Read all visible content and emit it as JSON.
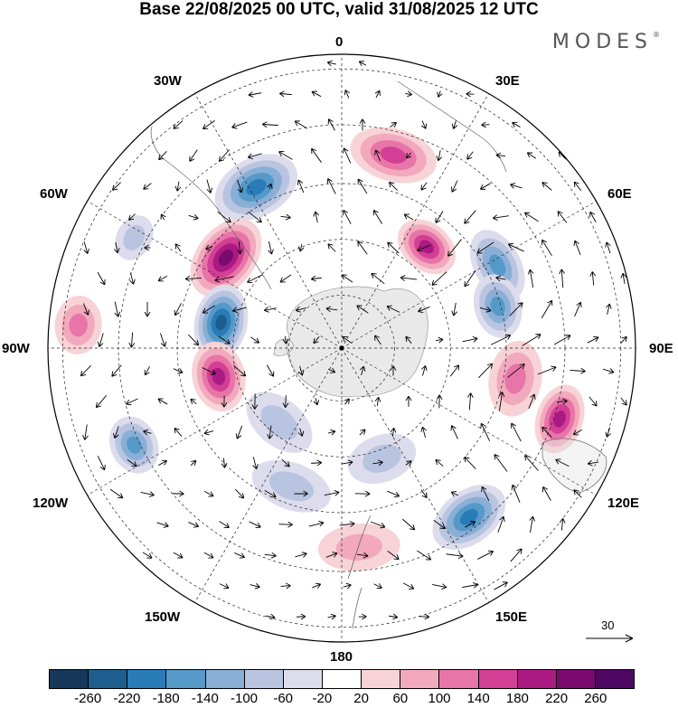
{
  "title": "Base 22/08/2025 00 UTC, valid 31/08/2025 12 UTC",
  "brand": "MODES",
  "brand_mark": "®",
  "longitude_labels": {
    "lon_0": "0",
    "lon_30e": "30E",
    "lon_60e": "60E",
    "lon_90e": "90E",
    "lon_120e": "120E",
    "lon_150e": "150E",
    "lon_180": "180",
    "lon_150w": "150W",
    "lon_120w": "120W",
    "lon_90w": "90W",
    "lon_60w": "60W",
    "lon_30w": "30W"
  },
  "reference_vector": {
    "label": "30",
    "value": 30
  },
  "colorbar": {
    "ticks": [
      "-260",
      "-220",
      "-180",
      "-140",
      "-100",
      "-60",
      "-20",
      "20",
      "60",
      "100",
      "140",
      "180",
      "220",
      "260"
    ],
    "colors": [
      "#17385a",
      "#1d5e8e",
      "#2a7cb8",
      "#5599c9",
      "#8aafd6",
      "#b9c4e0",
      "#dcdcec",
      "#ffffff",
      "#f7d3d8",
      "#f2a9bd",
      "#e875a8",
      "#d33f95",
      "#ab1982",
      "#7a0a6e",
      "#4e0863"
    ]
  },
  "anomalies": [
    {
      "lon": -28,
      "colat": 0.62,
      "a": 0.15,
      "b": 0.1,
      "value": -180
    },
    {
      "lon": -52,
      "colat": 0.5,
      "a": 0.15,
      "b": 0.1,
      "value": 220
    },
    {
      "lon": -78,
      "colat": 0.42,
      "a": 0.13,
      "b": 0.09,
      "value": -240
    },
    {
      "lon": -103,
      "colat": 0.43,
      "a": 0.12,
      "b": 0.09,
      "value": 180
    },
    {
      "lon": -115,
      "colat": 0.78,
      "a": 0.1,
      "b": 0.08,
      "value": -140
    },
    {
      "lon": -85,
      "colat": 0.9,
      "a": 0.1,
      "b": 0.08,
      "value": 100
    },
    {
      "lon": -62,
      "colat": 0.8,
      "a": 0.08,
      "b": 0.06,
      "value": -60
    },
    {
      "lon": 15,
      "colat": 0.68,
      "a": 0.15,
      "b": 0.09,
      "value": 140
    },
    {
      "lon": 40,
      "colat": 0.45,
      "a": 0.11,
      "b": 0.08,
      "value": 180
    },
    {
      "lon": 62,
      "colat": 0.6,
      "a": 0.13,
      "b": 0.08,
      "value": -140
    },
    {
      "lon": 75,
      "colat": 0.55,
      "a": 0.11,
      "b": 0.08,
      "value": -140
    },
    {
      "lon": 100,
      "colat": 0.6,
      "a": 0.13,
      "b": 0.09,
      "value": 100
    },
    {
      "lon": 108,
      "colat": 0.78,
      "a": 0.12,
      "b": 0.08,
      "value": 180
    },
    {
      "lon": 143,
      "colat": 0.72,
      "a": 0.14,
      "b": 0.09,
      "value": -180
    },
    {
      "lon": 175,
      "colat": 0.68,
      "a": 0.14,
      "b": 0.08,
      "value": 60
    },
    {
      "lon": -160,
      "colat": 0.5,
      "a": 0.14,
      "b": 0.08,
      "value": -60
    },
    {
      "lon": -140,
      "colat": 0.33,
      "a": 0.13,
      "b": 0.08,
      "value": -60
    },
    {
      "lon": 160,
      "colat": 0.4,
      "a": 0.12,
      "b": 0.08,
      "value": -60
    }
  ]
}
